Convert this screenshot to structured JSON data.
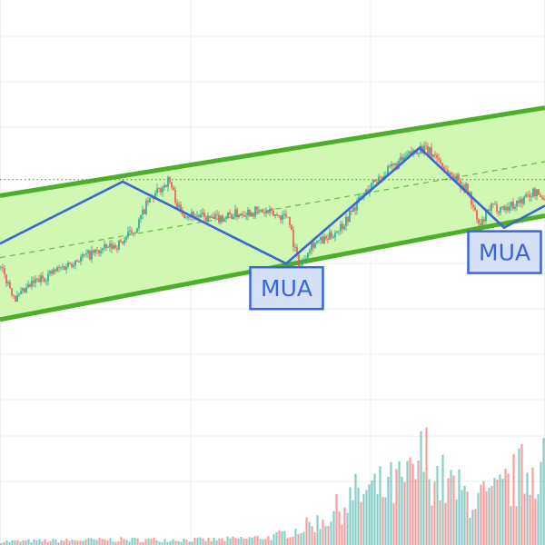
{
  "chart_data": {
    "type": "candlestick",
    "title": "",
    "xlabel": "",
    "ylabel": "",
    "grid": true,
    "legend": "none",
    "price_scale": [
      0,
      100
    ],
    "volume_scale": [
      0,
      100
    ],
    "reference_level": 63,
    "colors": {
      "up": "#26a69a",
      "down": "#ef5350",
      "channel_fill": "#c9f7a6",
      "channel_line": "#4caf2a",
      "zigzag": "#3a66d6",
      "label_fill": "#d3e0f5",
      "label_text": "#3a66d6",
      "reference_line": "#3a8a4a",
      "grid": "#eeeeee"
    },
    "channel": {
      "upper": {
        "start": [
          0,
          59
        ],
        "end": [
          100,
          81
        ]
      },
      "lower": {
        "start": [
          0,
          28
        ],
        "end": [
          100,
          54
        ]
      },
      "mid": {
        "start": [
          0,
          43.5
        ],
        "end": [
          100,
          67.5
        ]
      }
    },
    "zigzag": [
      {
        "x": 0,
        "y": 47
      },
      {
        "x": 22.5,
        "y": 62.5
      },
      {
        "x": 52.5,
        "y": 42
      },
      {
        "x": 77,
        "y": 71
      },
      {
        "x": 92.5,
        "y": 51
      },
      {
        "x": 100,
        "y": 56.5
      }
    ],
    "annotations": [
      {
        "text": "MUA",
        "x": 52.5,
        "y": 42
      },
      {
        "text": "MUA",
        "x": 92.5,
        "y": 51
      }
    ],
    "price_path": [
      {
        "x": 0,
        "y": 41
      },
      {
        "x": 3,
        "y": 33
      },
      {
        "x": 6,
        "y": 37
      },
      {
        "x": 10,
        "y": 40
      },
      {
        "x": 14,
        "y": 43
      },
      {
        "x": 18,
        "y": 45
      },
      {
        "x": 22,
        "y": 47
      },
      {
        "x": 25,
        "y": 51
      },
      {
        "x": 27,
        "y": 57
      },
      {
        "x": 29,
        "y": 60
      },
      {
        "x": 31,
        "y": 63
      },
      {
        "x": 33,
        "y": 55
      },
      {
        "x": 36,
        "y": 54
      },
      {
        "x": 39,
        "y": 53
      },
      {
        "x": 42,
        "y": 54
      },
      {
        "x": 45,
        "y": 55
      },
      {
        "x": 48,
        "y": 55
      },
      {
        "x": 51,
        "y": 54
      },
      {
        "x": 53,
        "y": 54
      },
      {
        "x": 54,
        "y": 46
      },
      {
        "x": 55,
        "y": 41
      },
      {
        "x": 57,
        "y": 47
      },
      {
        "x": 60,
        "y": 48
      },
      {
        "x": 63,
        "y": 52
      },
      {
        "x": 66,
        "y": 58
      },
      {
        "x": 69,
        "y": 63
      },
      {
        "x": 72,
        "y": 66
      },
      {
        "x": 75,
        "y": 69
      },
      {
        "x": 77,
        "y": 71
      },
      {
        "x": 80,
        "y": 69
      },
      {
        "x": 82,
        "y": 65
      },
      {
        "x": 84,
        "y": 63
      },
      {
        "x": 86,
        "y": 60
      },
      {
        "x": 87,
        "y": 55
      },
      {
        "x": 88,
        "y": 51
      },
      {
        "x": 90,
        "y": 56
      },
      {
        "x": 93,
        "y": 56
      },
      {
        "x": 96,
        "y": 58
      },
      {
        "x": 98,
        "y": 60
      },
      {
        "x": 100,
        "y": 58
      }
    ],
    "volume_profile": [
      {
        "x": 0,
        "y": 4
      },
      {
        "x": 20,
        "y": 6
      },
      {
        "x": 40,
        "y": 6
      },
      {
        "x": 50,
        "y": 9
      },
      {
        "x": 55,
        "y": 18
      },
      {
        "x": 60,
        "y": 30
      },
      {
        "x": 65,
        "y": 55
      },
      {
        "x": 70,
        "y": 62
      },
      {
        "x": 75,
        "y": 70
      },
      {
        "x": 78,
        "y": 100
      },
      {
        "x": 80,
        "y": 76
      },
      {
        "x": 85,
        "y": 56
      },
      {
        "x": 90,
        "y": 50
      },
      {
        "x": 95,
        "y": 75
      },
      {
        "x": 100,
        "y": 100
      }
    ]
  }
}
